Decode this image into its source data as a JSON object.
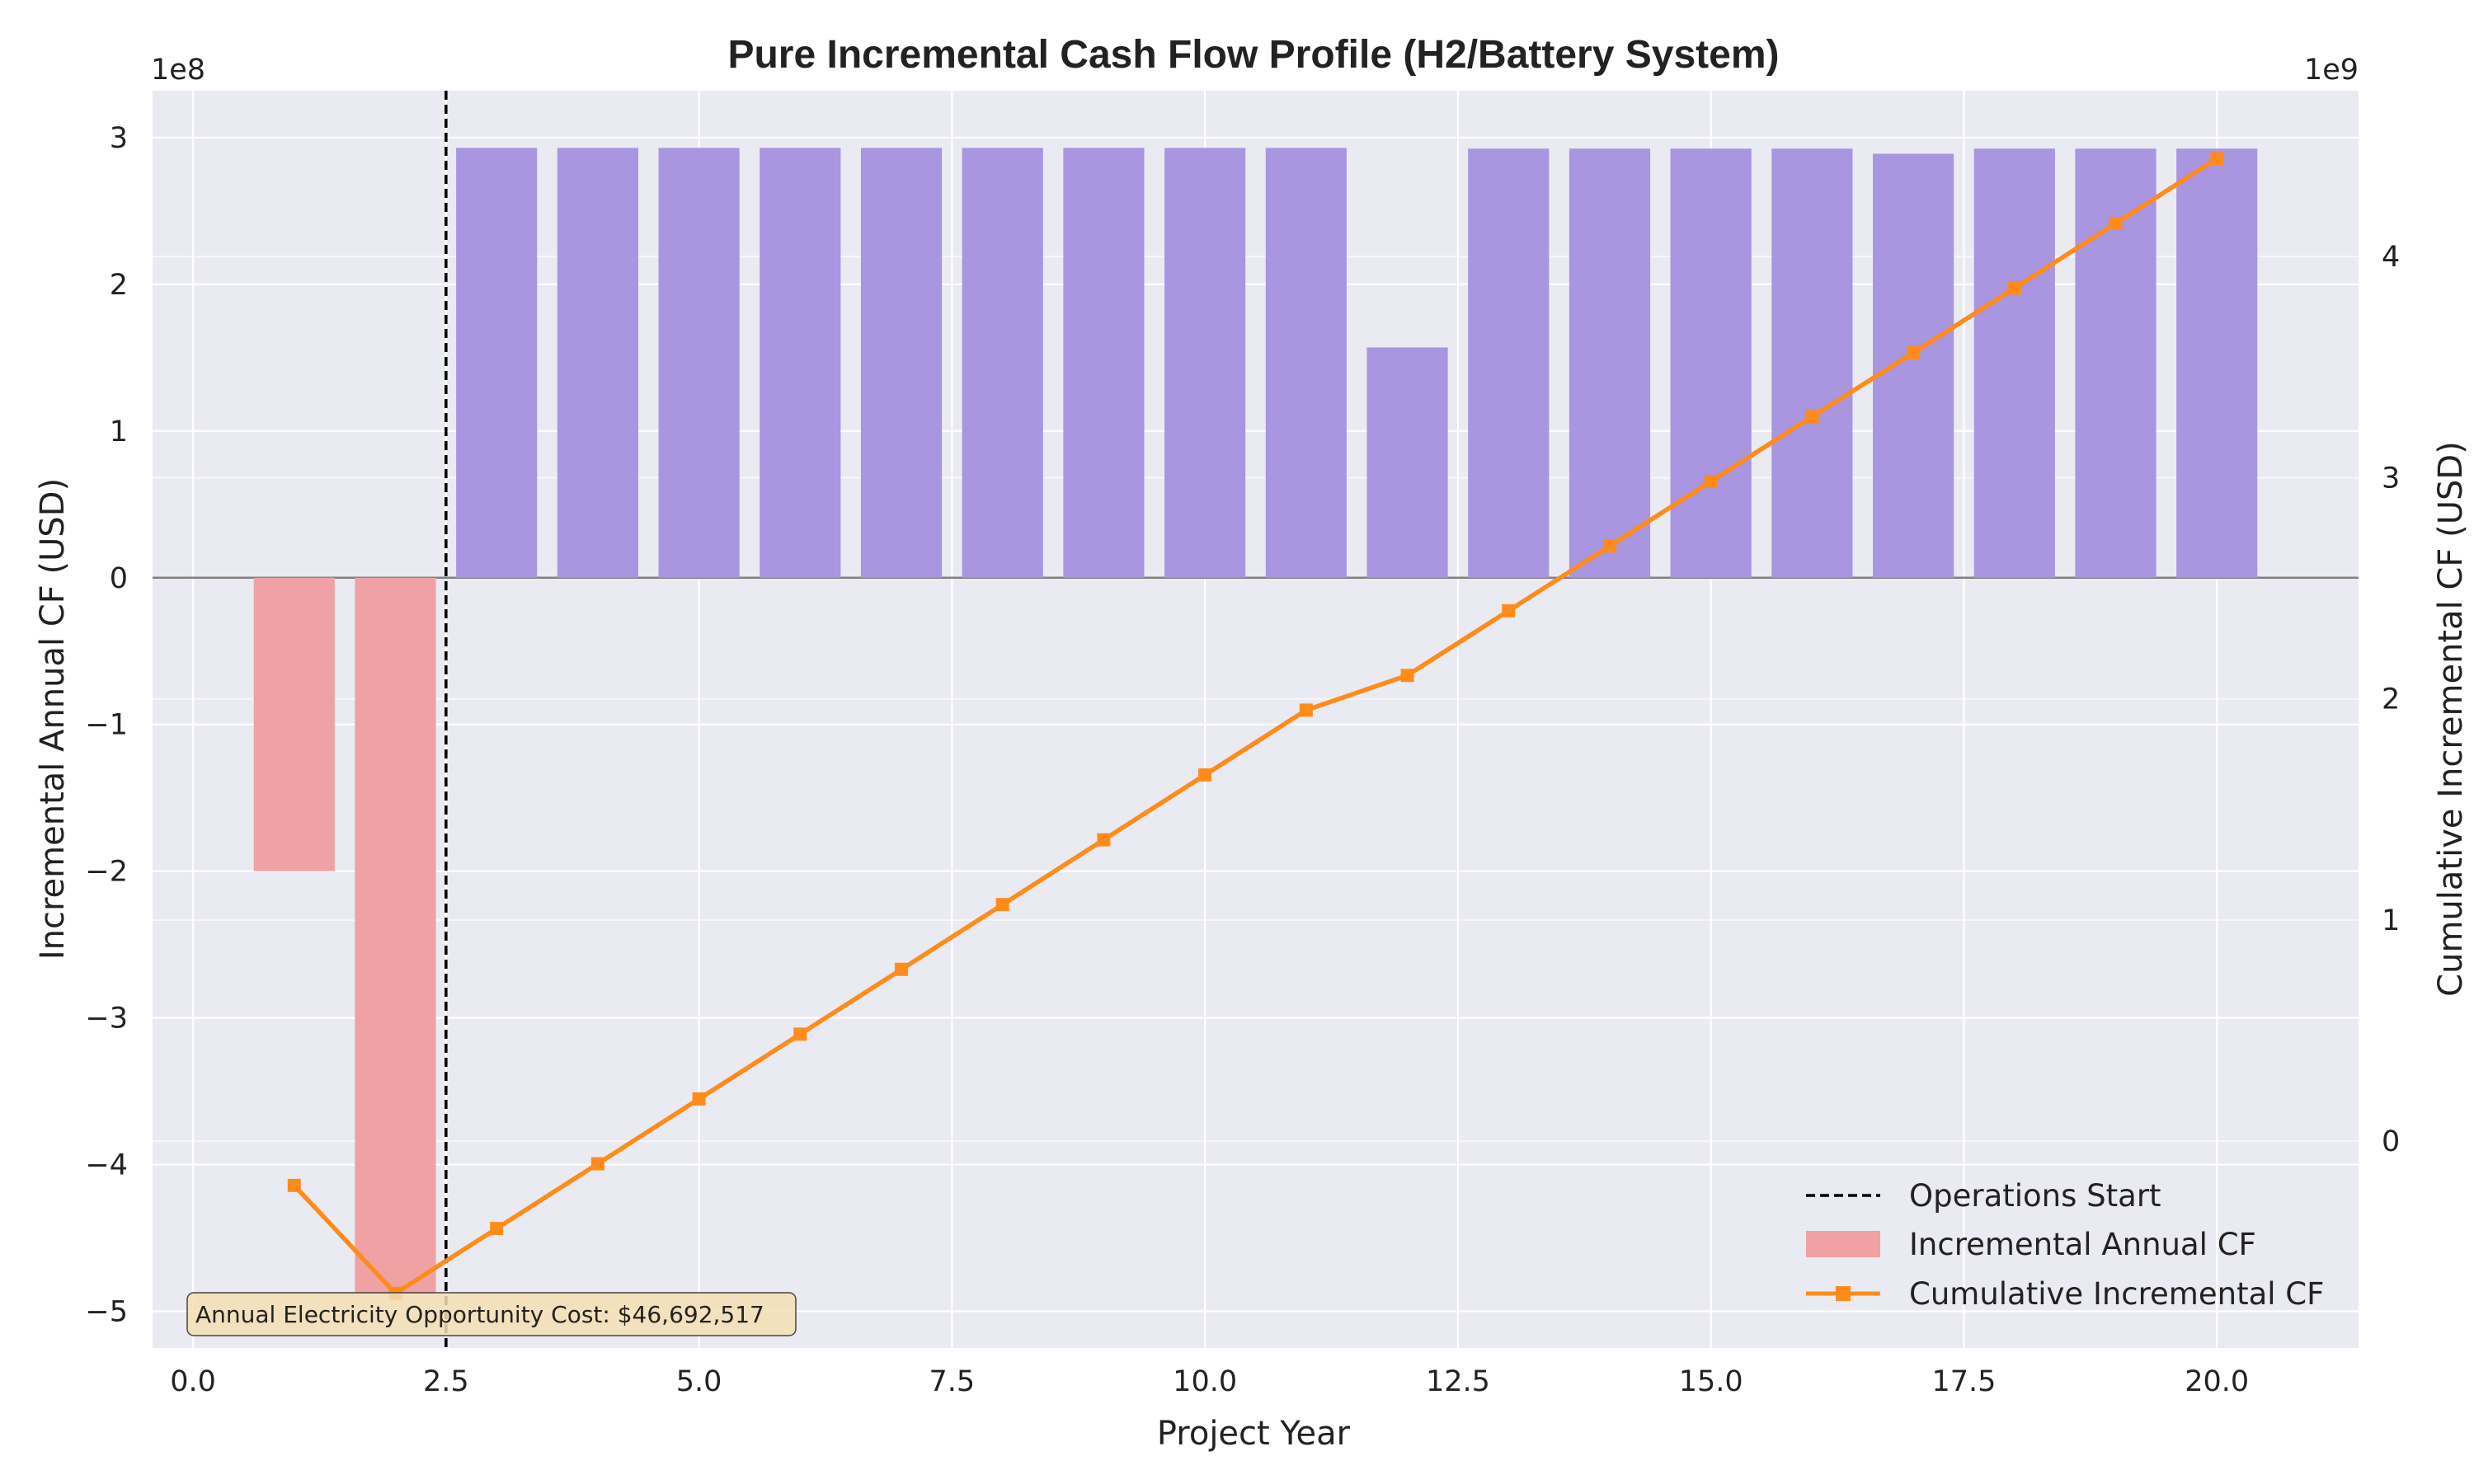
{
  "chart_data": {
    "type": "bar",
    "title": "Pure Incremental Cash Flow Profile (H2/Battery System)",
    "xlabel": "Project Year",
    "ylabel_left": "Incremental Annual CF (USD)",
    "ylabel_right": "Cumulative Incremental CF (USD)",
    "left_offset_label": "1e8",
    "right_offset_label": "1e9",
    "xlim": [
      -0.4,
      21.4
    ],
    "ylim_left": [
      -525000000,
      332000000
    ],
    "ylim_right": [
      -935000000,
      4750000000
    ],
    "x_ticks": [
      0.0,
      2.5,
      5.0,
      7.5,
      10.0,
      12.5,
      15.0,
      17.5,
      20.0
    ],
    "x_tick_labels": [
      "0.0",
      "2.5",
      "5.0",
      "7.5",
      "10.0",
      "12.5",
      "15.0",
      "17.5",
      "20.0"
    ],
    "y_left_ticks": [
      -500000000,
      -400000000,
      -300000000,
      -200000000,
      -100000000,
      0,
      100000000,
      200000000,
      300000000
    ],
    "y_left_tick_labels": [
      "−5",
      "−4",
      "−3",
      "−2",
      "−1",
      "0",
      "1",
      "2",
      "3"
    ],
    "y_right_ticks": [
      0,
      1000000000,
      2000000000,
      3000000000,
      4000000000
    ],
    "y_right_tick_labels": [
      "0",
      "1",
      "2",
      "3",
      "4"
    ],
    "grid": true,
    "legend_position": "lower-right",
    "series": [
      {
        "name": "Incremental Annual CF",
        "type": "bar",
        "axis": "left",
        "x": [
          1,
          2,
          3,
          4,
          5,
          6,
          7,
          8,
          9,
          10,
          11,
          12,
          13,
          14,
          15,
          16,
          17,
          18,
          19,
          20
        ],
        "values": [
          -200000000,
          -488000000,
          293000000,
          293000000,
          293000000,
          293000000,
          293000000,
          293000000,
          293000000,
          293000000,
          293000000,
          157000000,
          292500000,
          292500000,
          292500000,
          292500000,
          289000000,
          292500000,
          292500000,
          292500000
        ],
        "color_positive": "#a995e0",
        "color_negative": "#f0a1a4"
      },
      {
        "name": "Cumulative Incremental CF",
        "type": "line",
        "axis": "right",
        "x": [
          1,
          2,
          3,
          4,
          5,
          6,
          7,
          8,
          9,
          10,
          11,
          12,
          13,
          14,
          15,
          16,
          17,
          18,
          19,
          20
        ],
        "values": [
          -200000000,
          -688000000,
          -395000000,
          -102000000,
          191000000,
          484000000,
          777000000,
          1070000000,
          1363000000,
          1656000000,
          1949000000,
          2106000000,
          2398500000,
          2691000000,
          2983500000,
          3276000000,
          3565000000,
          3857500000,
          4150000000,
          4442500000
        ],
        "color": "#ff8c1a",
        "marker": "square"
      }
    ],
    "vline": {
      "x": 2.5,
      "label": "Operations Start",
      "color": "#000000",
      "style": "dashed"
    },
    "annotation": {
      "text": "Annual Electricity Opportunity Cost: $46,692,517",
      "position": "bottom-left"
    },
    "legend": [
      {
        "label": "Operations Start",
        "kind": "dashed-line",
        "color": "#000000"
      },
      {
        "label": "Incremental Annual CF",
        "kind": "patch",
        "color": "#f0a1a4"
      },
      {
        "label": "Cumulative Incremental CF",
        "kind": "line-marker",
        "color": "#ff8c1a"
      }
    ],
    "colors": {
      "plot_background": "#eaeaf2",
      "grid": "#ffffff",
      "zero_line": "#808080"
    }
  }
}
